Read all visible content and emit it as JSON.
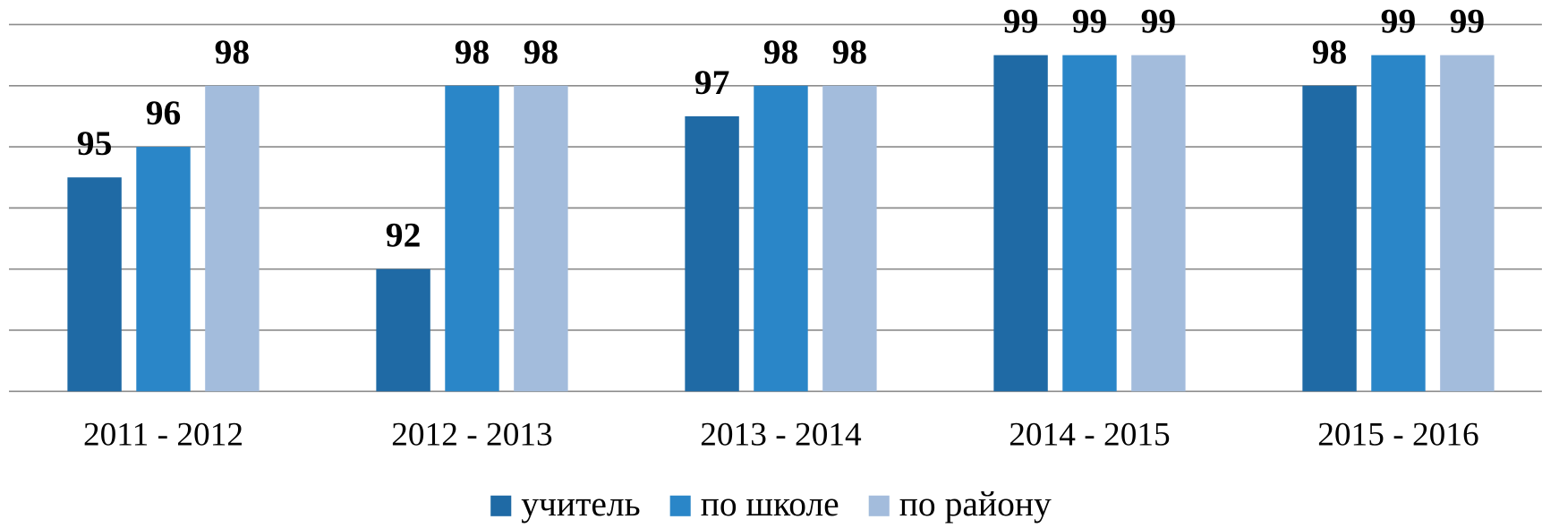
{
  "chart_data": {
    "type": "bar",
    "categories": [
      "2011 - 2012",
      "2012 - 2013",
      "2013 - 2014",
      "2014 - 2015",
      "2015 - 2016"
    ],
    "series": [
      {
        "name": "учитель",
        "color": "#1f6aa5",
        "values": [
          95,
          92,
          97,
          99,
          98
        ]
      },
      {
        "name": "по школе",
        "color": "#2a86c8",
        "values": [
          96,
          98,
          98,
          99,
          99
        ]
      },
      {
        "name": "по району",
        "color": "#a3bcdc",
        "values": [
          98,
          98,
          98,
          99,
          99
        ]
      }
    ],
    "ylim": [
      88,
      100
    ],
    "yticks": [
      88,
      90,
      92,
      94,
      96,
      98,
      100
    ],
    "grid": true,
    "legend": "bottom"
  }
}
